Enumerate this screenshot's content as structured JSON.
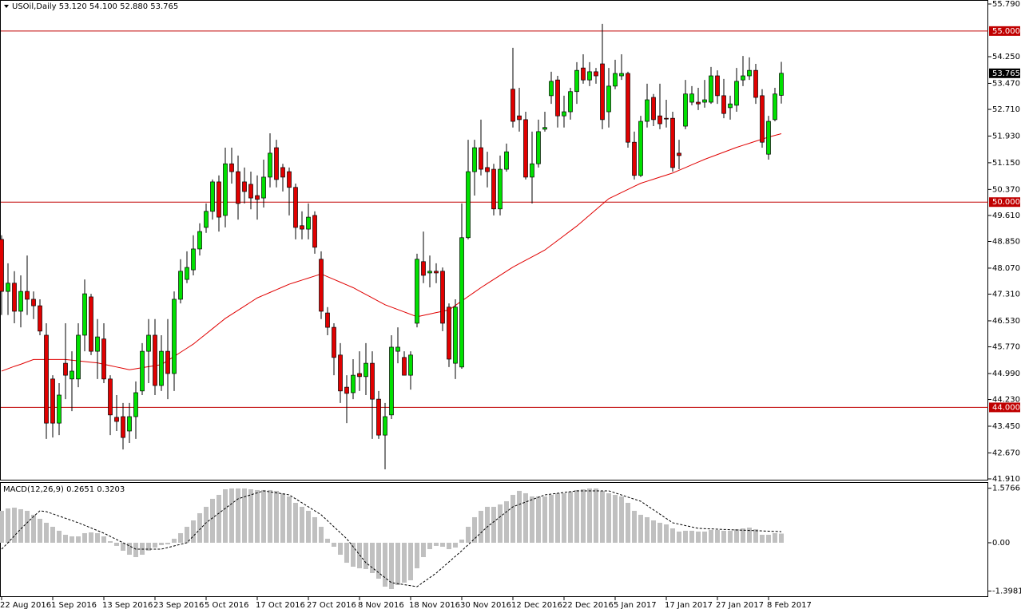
{
  "chart_data": {
    "type": "candlestick",
    "title": "USOil,Daily  53.120 54.100 52.880 53.765",
    "categories": [
      "22 Aug 2016",
      null,
      null,
      null,
      null,
      null,
      null,
      null,
      "1 Sep 2016",
      null,
      null,
      null,
      null,
      null,
      null,
      null,
      "13 Sep 2016",
      null,
      null,
      null,
      null,
      null,
      null,
      null,
      "23 Sep 2016",
      null,
      null,
      null,
      null,
      null,
      null,
      null,
      "5 Oct 2016",
      null,
      null,
      null,
      null,
      null,
      null,
      null,
      "17 Oct 2016",
      null,
      null,
      null,
      null,
      null,
      null,
      null,
      "27 Oct 2016",
      null,
      null,
      null,
      null,
      null,
      null,
      null,
      "8 Nov 2016",
      null,
      null,
      null,
      null,
      null,
      null,
      null,
      "18 Nov 2016",
      null,
      null,
      null,
      null,
      null,
      null,
      null,
      "30 Nov 2016",
      null,
      null,
      null,
      null,
      null,
      null,
      null,
      "12 Dec 2016",
      null,
      null,
      null,
      null,
      null,
      null,
      null,
      "22 Dec 2016",
      null,
      null,
      null,
      null,
      null,
      null,
      null,
      "5 Jan 2017",
      null,
      null,
      null,
      null,
      null,
      null,
      null,
      "17 Jan 2017",
      null,
      null,
      null,
      null,
      null,
      null,
      null,
      "27 Jan 2017",
      null,
      null,
      null,
      null,
      null,
      null,
      null,
      "8 Feb 2017",
      null,
      null
    ],
    "candles": [
      [
        48.91,
        49.03,
        46.7,
        47.39
      ],
      [
        47.39,
        48.21,
        46.7,
        47.63
      ],
      [
        47.63,
        47.98,
        46.46,
        46.81
      ],
      [
        46.81,
        47.86,
        46.34,
        47.39
      ],
      [
        47.39,
        48.44,
        46.7,
        47.16
      ],
      [
        47.16,
        47.39,
        46.58,
        46.97
      ],
      [
        46.97,
        47.16,
        46.11,
        46.23
      ],
      [
        46.11,
        46.46,
        43.08,
        43.54
      ],
      [
        44.83,
        44.94,
        43.12,
        43.54
      ],
      [
        43.54,
        44.71,
        43.19,
        44.36
      ],
      [
        45.29,
        46.46,
        44.24,
        44.94
      ],
      [
        44.83,
        45.64,
        43.89,
        45.06
      ],
      [
        44.83,
        46.46,
        44.59,
        46.11
      ],
      [
        46.11,
        47.74,
        45.64,
        47.32
      ],
      [
        47.23,
        47.32,
        45.53,
        45.64
      ],
      [
        45.64,
        46.58,
        44.83,
        46.06
      ],
      [
        46.0,
        46.46,
        44.71,
        44.83
      ],
      [
        44.83,
        44.94,
        43.19,
        43.78
      ],
      [
        43.71,
        44.36,
        43.31,
        43.59
      ],
      [
        43.73,
        44.13,
        42.77,
        43.12
      ],
      [
        43.31,
        44.13,
        42.96,
        43.73
      ],
      [
        43.73,
        44.76,
        43.08,
        44.43
      ],
      [
        44.48,
        45.88,
        44.36,
        45.64
      ],
      [
        45.64,
        46.58,
        44.71,
        46.11
      ],
      [
        46.11,
        46.58,
        44.36,
        44.64
      ],
      [
        44.64,
        46.11,
        44.48,
        45.64
      ],
      [
        45.64,
        46.58,
        44.24,
        44.99
      ],
      [
        44.99,
        47.39,
        44.48,
        47.16
      ],
      [
        47.16,
        48.33,
        47.04,
        47.98
      ],
      [
        47.74,
        48.56,
        47.63,
        48.09
      ],
      [
        48.02,
        49.03,
        47.86,
        48.63
      ],
      [
        48.63,
        49.38,
        48.44,
        49.14
      ],
      [
        49.26,
        49.96,
        49.1,
        49.73
      ],
      [
        49.73,
        50.66,
        49.49,
        50.59
      ],
      [
        50.59,
        50.78,
        49.14,
        49.56
      ],
      [
        49.61,
        51.59,
        49.26,
        51.12
      ],
      [
        51.12,
        51.59,
        50.54,
        50.89
      ],
      [
        50.89,
        51.36,
        49.49,
        49.96
      ],
      [
        50.59,
        51.01,
        49.96,
        50.31
      ],
      [
        50.52,
        50.89,
        49.79,
        50.12
      ],
      [
        50.19,
        50.78,
        49.49,
        50.08
      ],
      [
        50.12,
        51.24,
        49.84,
        50.73
      ],
      [
        50.73,
        52.01,
        50.43,
        51.43
      ],
      [
        51.59,
        51.82,
        50.43,
        50.66
      ],
      [
        51.01,
        51.12,
        50.31,
        50.73
      ],
      [
        50.89,
        51.01,
        49.61,
        50.43
      ],
      [
        50.43,
        50.54,
        48.91,
        49.26
      ],
      [
        49.31,
        49.73,
        48.91,
        49.21
      ],
      [
        49.21,
        49.96,
        48.91,
        49.56
      ],
      [
        49.61,
        49.73,
        48.49,
        48.68
      ],
      [
        48.33,
        48.56,
        46.58,
        46.81
      ],
      [
        46.76,
        46.93,
        46.11,
        46.34
      ],
      [
        46.34,
        46.46,
        44.94,
        45.46
      ],
      [
        45.53,
        45.88,
        44.13,
        44.48
      ],
      [
        44.59,
        44.94,
        43.54,
        44.41
      ],
      [
        44.43,
        45.41,
        44.24,
        44.94
      ],
      [
        44.99,
        45.64,
        44.48,
        44.9
      ],
      [
        44.9,
        45.88,
        44.36,
        45.29
      ],
      [
        45.29,
        45.64,
        43.08,
        44.24
      ],
      [
        44.24,
        44.48,
        43.08,
        43.19
      ],
      [
        43.19,
        44.13,
        42.19,
        43.73
      ],
      [
        43.78,
        46.11,
        43.66,
        45.76
      ],
      [
        45.64,
        46.34,
        45.29,
        45.76
      ],
      [
        45.46,
        45.64,
        44.94,
        44.94
      ],
      [
        44.94,
        45.64,
        44.52,
        45.53
      ],
      [
        46.46,
        48.49,
        46.34,
        48.33
      ],
      [
        48.26,
        49.14,
        47.63,
        47.86
      ],
      [
        47.93,
        48.44,
        47.51,
        47.98
      ],
      [
        47.98,
        48.21,
        47.63,
        47.93
      ],
      [
        47.98,
        48.09,
        46.23,
        46.46
      ],
      [
        46.93,
        47.04,
        45.18,
        45.41
      ],
      [
        45.29,
        47.16,
        44.83,
        46.93
      ],
      [
        45.18,
        49.96,
        45.13,
        48.96
      ],
      [
        48.96,
        51.82,
        48.91,
        50.89
      ],
      [
        50.89,
        51.82,
        50.19,
        51.59
      ],
      [
        51.59,
        52.41,
        50.78,
        50.96
      ],
      [
        51.01,
        51.47,
        50.43,
        50.89
      ],
      [
        50.96,
        51.12,
        49.61,
        49.8
      ],
      [
        49.8,
        51.36,
        49.61,
        50.96
      ],
      [
        50.96,
        51.71,
        50.89,
        51.47
      ],
      [
        53.3,
        54.51,
        52.18,
        52.36
      ],
      [
        52.52,
        53.34,
        52.06,
        52.41
      ],
      [
        52.41,
        52.64,
        50.66,
        50.73
      ],
      [
        50.73,
        52.06,
        49.96,
        51.12
      ],
      [
        51.12,
        52.41,
        51.01,
        52.06
      ],
      [
        52.13,
        52.64,
        52.06,
        52.18
      ],
      [
        53.11,
        53.81,
        52.87,
        53.53
      ],
      [
        53.57,
        53.69,
        52.18,
        52.52
      ],
      [
        52.52,
        53.11,
        52.18,
        52.64
      ],
      [
        52.64,
        53.34,
        52.41,
        53.23
      ],
      [
        53.23,
        54.09,
        52.87,
        53.85
      ],
      [
        53.92,
        54.32,
        53.46,
        53.57
      ],
      [
        53.57,
        54.09,
        53.39,
        53.81
      ],
      [
        53.81,
        53.92,
        53.46,
        53.69
      ],
      [
        54.04,
        55.21,
        52.13,
        52.41
      ],
      [
        52.64,
        53.92,
        52.18,
        53.39
      ],
      [
        53.39,
        54.16,
        53.3,
        53.76
      ],
      [
        53.69,
        54.32,
        53.57,
        53.76
      ],
      [
        53.76,
        53.81,
        51.59,
        51.75
      ],
      [
        51.75,
        52.06,
        50.66,
        50.78
      ],
      [
        50.78,
        52.52,
        50.73,
        52.36
      ],
      [
        52.36,
        53.46,
        52.18,
        52.99
      ],
      [
        53.06,
        53.16,
        52.22,
        52.41
      ],
      [
        52.52,
        53.46,
        52.13,
        52.29
      ],
      [
        52.45,
        52.99,
        52.18,
        52.43
      ],
      [
        52.45,
        52.64,
        50.89,
        51.01
      ],
      [
        51.43,
        51.82,
        50.96,
        51.36
      ],
      [
        52.22,
        53.57,
        52.13,
        53.16
      ],
      [
        52.92,
        53.39,
        52.83,
        53.16
      ],
      [
        52.92,
        53.34,
        52.69,
        52.87
      ],
      [
        52.92,
        53.57,
        52.76,
        52.99
      ],
      [
        52.92,
        53.95,
        52.87,
        53.69
      ],
      [
        53.69,
        53.85,
        52.87,
        53.11
      ],
      [
        53.11,
        53.6,
        52.45,
        52.59
      ],
      [
        52.76,
        53.11,
        52.41,
        52.87
      ],
      [
        52.83,
        53.92,
        52.64,
        53.53
      ],
      [
        53.57,
        54.27,
        53.39,
        53.69
      ],
      [
        53.69,
        54.23,
        53.57,
        53.85
      ],
      [
        53.85,
        54.04,
        52.87,
        53.06
      ],
      [
        53.11,
        53.3,
        51.59,
        51.75
      ],
      [
        51.4,
        52.52,
        51.24,
        52.36
      ],
      [
        52.41,
        53.34,
        52.36,
        53.16
      ],
      [
        53.12,
        54.1,
        52.88,
        53.765
      ]
    ],
    "up_color": "#00e000",
    "down_color": "#e00000",
    "moving_average": {
      "color": "#e00000",
      "values": [
        45.06,
        45.13,
        45.2,
        45.26,
        45.33,
        45.4,
        45.4,
        45.4,
        45.4,
        45.4,
        45.4,
        45.38,
        45.36,
        45.34,
        45.32,
        45.3,
        45.26,
        45.22,
        45.18,
        45.14,
        45.1,
        45.13,
        45.16,
        45.19,
        45.22,
        45.25,
        45.37,
        45.49,
        45.61,
        45.73,
        45.85,
        46.0,
        46.15,
        46.3,
        46.45,
        46.6,
        46.72,
        46.84,
        46.96,
        47.08,
        47.2,
        47.28,
        47.36,
        47.44,
        47.52,
        47.6,
        47.66,
        47.72,
        47.78,
        47.84,
        47.9,
        47.82,
        47.74,
        47.66,
        47.58,
        47.5,
        47.4,
        47.3,
        47.2,
        47.1,
        47.0,
        46.93,
        46.86,
        46.79,
        46.72,
        46.65,
        46.69,
        46.73,
        46.77,
        46.81,
        46.85,
        46.98,
        47.11,
        47.24,
        47.37,
        47.5,
        47.62,
        47.74,
        47.86,
        47.98,
        48.1,
        48.2,
        48.3,
        48.4,
        48.5,
        48.6,
        48.74,
        48.88,
        49.02,
        49.16,
        49.3,
        49.46,
        49.62,
        49.78,
        49.94,
        50.1,
        50.19,
        50.28,
        50.37,
        50.46,
        50.55,
        50.61,
        50.67,
        50.73,
        50.79,
        50.85,
        50.93,
        51.01,
        51.09,
        51.17,
        51.25,
        51.32,
        51.39,
        51.46,
        51.53,
        51.6,
        51.66,
        51.72,
        51.78,
        51.84,
        51.9,
        51.95,
        52.0
      ]
    },
    "ylim": [
      41.91,
      55.79
    ],
    "yticks": [
      {
        "value": 55.79,
        "label": "55.790"
      },
      {
        "value": 54.25,
        "label": "54.250"
      },
      {
        "value": 53.47,
        "label": "53.470"
      },
      {
        "value": 52.71,
        "label": "52.710"
      },
      {
        "value": 51.93,
        "label": "51.930"
      },
      {
        "value": 51.15,
        "label": "51.150"
      },
      {
        "value": 50.37,
        "label": "50.370"
      },
      {
        "value": 49.61,
        "label": "49.610"
      },
      {
        "value": 48.85,
        "label": "48.850"
      },
      {
        "value": 48.07,
        "label": "48.070"
      },
      {
        "value": 47.31,
        "label": "47.310"
      },
      {
        "value": 46.53,
        "label": "46.530"
      },
      {
        "value": 45.77,
        "label": "45.770"
      },
      {
        "value": 44.99,
        "label": "44.990"
      },
      {
        "value": 44.23,
        "label": "44.230"
      },
      {
        "value": 43.45,
        "label": "43.450"
      },
      {
        "value": 42.67,
        "label": "42.670"
      },
      {
        "value": 41.91,
        "label": "41.910"
      }
    ],
    "levels": [
      {
        "value": 55,
        "label": "55.000"
      },
      {
        "value": 50,
        "label": "50.000"
      },
      {
        "value": 44,
        "label": "44.000"
      }
    ],
    "level_color": "#c00000",
    "last_price": {
      "value": 53.765,
      "label": "53.765"
    },
    "macd": {
      "title": "MACD(12,26,9) 0.2651 0.3203",
      "histogram_color": "#c0c0c0",
      "histogram": [
        0.924,
        0.993,
        1.016,
        0.97,
        0.924,
        0.809,
        0.693,
        0.578,
        0.462,
        0.347,
        0.231,
        0.185,
        0.185,
        0.277,
        0.3,
        0.277,
        0.185,
        0.046,
        -0.092,
        -0.231,
        -0.347,
        -0.416,
        -0.347,
        -0.231,
        -0.139,
        -0.069,
        -0.046,
        0.116,
        0.277,
        0.462,
        0.647,
        0.855,
        1.04,
        1.271,
        1.386,
        1.548,
        1.571,
        1.571,
        1.571,
        1.548,
        1.525,
        1.525,
        1.525,
        1.502,
        1.432,
        1.34,
        1.155,
        1.04,
        0.924,
        0.739,
        0.462,
        0.116,
        -0.116,
        -0.347,
        -0.578,
        -0.693,
        -0.739,
        -0.762,
        -0.878,
        -1.04,
        -1.271,
        -1.34,
        -1.224,
        -1.155,
        -1.086,
        -0.739,
        -0.416,
        -0.185,
        -0.092,
        -0.116,
        -0.185,
        -0.139,
        0.092,
        0.462,
        0.739,
        0.924,
        1.04,
        1.04,
        1.109,
        1.201,
        1.386,
        1.502,
        1.432,
        1.34,
        1.34,
        1.34,
        1.386,
        1.432,
        1.432,
        1.478,
        1.525,
        1.548,
        1.571,
        1.571,
        1.502,
        1.432,
        1.386,
        1.34,
        1.155,
        0.924,
        0.809,
        0.739,
        0.647,
        0.578,
        0.531,
        0.416,
        0.323,
        0.347,
        0.347,
        0.323,
        0.323,
        0.37,
        0.37,
        0.347,
        0.347,
        0.393,
        0.416,
        0.439,
        0.393,
        0.231,
        0.231,
        0.277,
        0.2651
      ],
      "signal_color": "#000000",
      "signal": [
        -0.185,
        0.0,
        0.2,
        0.4,
        0.58,
        0.76,
        0.924,
        0.9,
        0.836,
        0.772,
        0.708,
        0.643,
        0.578,
        0.503,
        0.428,
        0.352,
        0.277,
        0.185,
        0.092,
        0.0,
        -0.092,
        -0.185,
        -0.185,
        -0.185,
        -0.185,
        -0.185,
        -0.139,
        -0.092,
        -0.046,
        0.0,
        0.193,
        0.385,
        0.578,
        0.717,
        0.855,
        0.994,
        1.132,
        1.271,
        1.329,
        1.387,
        1.444,
        1.502,
        1.473,
        1.444,
        1.415,
        1.386,
        1.271,
        1.155,
        1.04,
        0.924,
        0.809,
        0.636,
        0.462,
        0.289,
        0.116,
        -0.115,
        -0.347,
        -0.578,
        -0.722,
        -0.867,
        -1.011,
        -1.155,
        -1.184,
        -1.213,
        -1.242,
        -1.271,
        -1.14,
        -1.009,
        -0.878,
        -0.716,
        -0.554,
        -0.393,
        -0.231,
        -0.058,
        0.116,
        0.289,
        0.462,
        0.607,
        0.751,
        0.896,
        1.04,
        1.109,
        1.178,
        1.248,
        1.317,
        1.386,
        1.409,
        1.432,
        1.456,
        1.479,
        1.502,
        1.502,
        1.502,
        1.502,
        1.502,
        1.502,
        1.442,
        1.382,
        1.321,
        1.261,
        1.201,
        1.076,
        0.952,
        0.827,
        0.703,
        0.578,
        0.538,
        0.497,
        0.457,
        0.416,
        0.408,
        0.401,
        0.393,
        0.385,
        0.378,
        0.37,
        0.363,
        0.356,
        0.349,
        0.342,
        0.335,
        0.328,
        0.3203
      ],
      "ylim": [
        -1.571,
        1.755
      ],
      "yticks": [
        {
          "value": 1.5766,
          "label": "1.5766"
        },
        {
          "value": 0,
          "label": "0.00"
        },
        {
          "value": -1.3981,
          "label": "-1.3981"
        }
      ]
    }
  }
}
